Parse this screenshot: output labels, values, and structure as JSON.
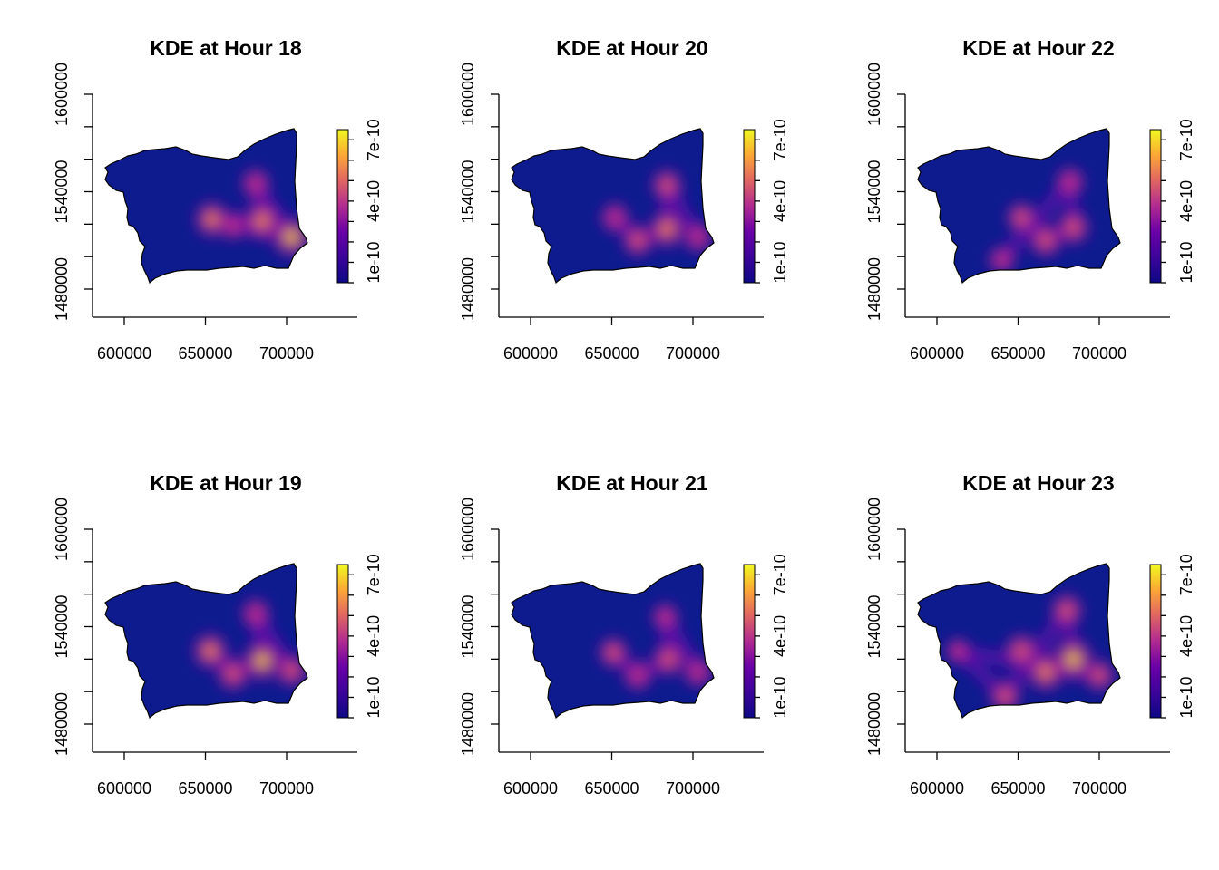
{
  "figure": {
    "layout": "2 rows x 3 columns",
    "palette": [
      "#0d0887",
      "#3b049a",
      "#6a00a8",
      "#b12a90",
      "#e16462",
      "#fca636",
      "#f0f921"
    ],
    "background_color": "#0d1b8f"
  },
  "chart_data": [
    {
      "type": "heatmap",
      "title": "KDE at Hour 18",
      "xlim": [
        580000,
        735000
      ],
      "ylim": [
        1455000,
        1620000
      ],
      "xticks": [
        600000,
        650000,
        700000
      ],
      "xtick_labels": [
        "600000",
        "650000",
        "700000"
      ],
      "yticks": [
        1480000,
        1540000,
        1600000
      ],
      "ytick_labels": [
        "1480000",
        "1540000",
        "1600000"
      ],
      "colorbar": {
        "range": [
          0,
          7.5e-10
        ],
        "ticks": [
          1e-10,
          4e-10,
          7e-10
        ],
        "tick_labels": [
          "1e-10",
          "4e-10",
          "7e-10"
        ]
      },
      "hotspots": [
        {
          "x": 654000,
          "y": 1523000,
          "intensity": 0.72
        },
        {
          "x": 685000,
          "y": 1522000,
          "intensity": 0.8
        },
        {
          "x": 681000,
          "y": 1545000,
          "intensity": 0.45
        },
        {
          "x": 703000,
          "y": 1512000,
          "intensity": 0.9
        },
        {
          "x": 667000,
          "y": 1519000,
          "intensity": 0.35
        }
      ]
    },
    {
      "type": "heatmap",
      "title": "KDE at Hour 19",
      "xlim": [
        580000,
        735000
      ],
      "ylim": [
        1455000,
        1620000
      ],
      "xticks": [
        600000,
        650000,
        700000
      ],
      "xtick_labels": [
        "600000",
        "650000",
        "700000"
      ],
      "yticks": [
        1480000,
        1540000,
        1600000
      ],
      "ytick_labels": [
        "1480000",
        "1540000",
        "1600000"
      ],
      "colorbar": {
        "range": [
          0,
          7.5e-10
        ],
        "ticks": [
          1e-10,
          4e-10,
          7e-10
        ],
        "tick_labels": [
          "1e-10",
          "4e-10",
          "7e-10"
        ]
      },
      "hotspots": [
        {
          "x": 653000,
          "y": 1525000,
          "intensity": 0.72
        },
        {
          "x": 667000,
          "y": 1511000,
          "intensity": 0.6
        },
        {
          "x": 685000,
          "y": 1519000,
          "intensity": 0.88
        },
        {
          "x": 681000,
          "y": 1548000,
          "intensity": 0.45
        },
        {
          "x": 703000,
          "y": 1513000,
          "intensity": 0.55
        }
      ]
    },
    {
      "type": "heatmap",
      "title": "KDE at Hour 20",
      "xlim": [
        580000,
        735000
      ],
      "ylim": [
        1455000,
        1620000
      ],
      "xticks": [
        600000,
        650000,
        700000
      ],
      "xtick_labels": [
        "600000",
        "650000",
        "700000"
      ],
      "yticks": [
        1480000,
        1540000,
        1600000
      ],
      "ytick_labels": [
        "1480000",
        "1540000",
        "1600000"
      ],
      "colorbar": {
        "range": [
          0,
          7.5e-10
        ],
        "ticks": [
          1e-10,
          4e-10,
          7e-10
        ],
        "tick_labels": [
          "1e-10",
          "4e-10",
          "7e-10"
        ]
      },
      "hotspots": [
        {
          "x": 652000,
          "y": 1524000,
          "intensity": 0.45
        },
        {
          "x": 666000,
          "y": 1510000,
          "intensity": 0.55
        },
        {
          "x": 684000,
          "y": 1517000,
          "intensity": 0.75
        },
        {
          "x": 684000,
          "y": 1544000,
          "intensity": 0.55
        },
        {
          "x": 703000,
          "y": 1512000,
          "intensity": 0.45
        }
      ]
    },
    {
      "type": "heatmap",
      "title": "KDE at Hour 21",
      "xlim": [
        580000,
        735000
      ],
      "ylim": [
        1455000,
        1620000
      ],
      "xticks": [
        600000,
        650000,
        700000
      ],
      "xtick_labels": [
        "600000",
        "650000",
        "700000"
      ],
      "yticks": [
        1480000,
        1540000,
        1600000
      ],
      "ytick_labels": [
        "1480000",
        "1540000",
        "1600000"
      ],
      "colorbar": {
        "range": [
          0,
          7.5e-10
        ],
        "ticks": [
          1e-10,
          4e-10,
          7e-10
        ],
        "tick_labels": [
          "1e-10",
          "4e-10",
          "7e-10"
        ]
      },
      "hotspots": [
        {
          "x": 651000,
          "y": 1524000,
          "intensity": 0.5
        },
        {
          "x": 666000,
          "y": 1510000,
          "intensity": 0.45
        },
        {
          "x": 685000,
          "y": 1520000,
          "intensity": 0.6
        },
        {
          "x": 683000,
          "y": 1546000,
          "intensity": 0.35
        },
        {
          "x": 703000,
          "y": 1512000,
          "intensity": 0.45
        }
      ]
    },
    {
      "type": "heatmap",
      "title": "KDE at Hour 22",
      "xlim": [
        580000,
        735000
      ],
      "ylim": [
        1455000,
        1620000
      ],
      "xticks": [
        600000,
        650000,
        700000
      ],
      "xtick_labels": [
        "600000",
        "650000",
        "700000"
      ],
      "yticks": [
        1480000,
        1540000,
        1600000
      ],
      "ytick_labels": [
        "1480000",
        "1540000",
        "1600000"
      ],
      "colorbar": {
        "range": [
          0,
          7.5e-10
        ],
        "ticks": [
          1e-10,
          4e-10,
          7e-10
        ],
        "tick_labels": [
          "1e-10",
          "4e-10",
          "7e-10"
        ]
      },
      "hotspots": [
        {
          "x": 652000,
          "y": 1524000,
          "intensity": 0.5
        },
        {
          "x": 667000,
          "y": 1510000,
          "intensity": 0.6
        },
        {
          "x": 684000,
          "y": 1518000,
          "intensity": 0.62
        },
        {
          "x": 682000,
          "y": 1546000,
          "intensity": 0.45
        },
        {
          "x": 640000,
          "y": 1498000,
          "intensity": 0.35
        }
      ]
    },
    {
      "type": "heatmap",
      "title": "KDE at Hour 23",
      "xlim": [
        580000,
        735000
      ],
      "ylim": [
        1455000,
        1620000
      ],
      "xticks": [
        600000,
        650000,
        700000
      ],
      "xtick_labels": [
        "600000",
        "650000",
        "700000"
      ],
      "yticks": [
        1480000,
        1540000,
        1600000
      ],
      "ytick_labels": [
        "1480000",
        "1540000",
        "1600000"
      ],
      "colorbar": {
        "range": [
          0,
          7.5e-10
        ],
        "ticks": [
          1e-10,
          4e-10,
          7e-10
        ],
        "tick_labels": [
          "1e-10",
          "4e-10",
          "7e-10"
        ]
      },
      "hotspots": [
        {
          "x": 652000,
          "y": 1525000,
          "intensity": 0.65
        },
        {
          "x": 667000,
          "y": 1512000,
          "intensity": 0.8
        },
        {
          "x": 684000,
          "y": 1520000,
          "intensity": 1.0
        },
        {
          "x": 680000,
          "y": 1550000,
          "intensity": 0.6
        },
        {
          "x": 642000,
          "y": 1497000,
          "intensity": 0.55
        },
        {
          "x": 613000,
          "y": 1525000,
          "intensity": 0.25
        },
        {
          "x": 700000,
          "y": 1510000,
          "intensity": 0.5
        }
      ]
    }
  ]
}
